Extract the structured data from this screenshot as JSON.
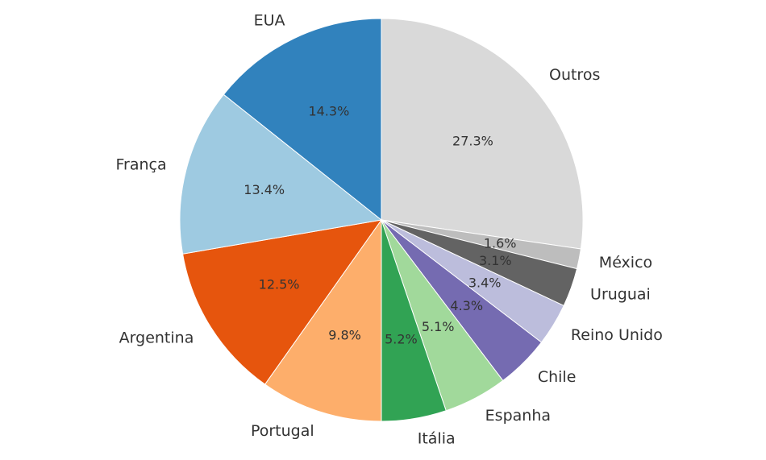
{
  "chart_data": {
    "type": "pie",
    "start_angle_deg": 90,
    "direction": "clockwise",
    "slices": [
      {
        "label": "Outros",
        "pct_text": "27.3%",
        "value": 27.3,
        "color": "#d9d9d9"
      },
      {
        "label": "México",
        "pct_text": "1.6%",
        "value": 1.6,
        "color": "#bdbdbd"
      },
      {
        "label": "Uruguai",
        "pct_text": "3.1%",
        "value": 3.1,
        "color": "#636363"
      },
      {
        "label": "Reino Unido",
        "pct_text": "3.4%",
        "value": 3.4,
        "color": "#bcbddc"
      },
      {
        "label": "Chile",
        "pct_text": "4.3%",
        "value": 4.3,
        "color": "#756bb1"
      },
      {
        "label": "Espanha",
        "pct_text": "5.1%",
        "value": 5.1,
        "color": "#a1d99b"
      },
      {
        "label": "Itália",
        "pct_text": "5.2%",
        "value": 5.2,
        "color": "#31a354"
      },
      {
        "label": "Portugal",
        "pct_text": "9.8%",
        "value": 9.8,
        "color": "#fdae6b"
      },
      {
        "label": "Argentina",
        "pct_text": "12.5%",
        "value": 12.5,
        "color": "#e6550d"
      },
      {
        "label": "França",
        "pct_text": "13.4%",
        "value": 13.4,
        "color": "#9ecae1"
      },
      {
        "label": "EUA",
        "pct_text": "14.3%",
        "value": 14.3,
        "color": "#3182bd"
      }
    ]
  }
}
